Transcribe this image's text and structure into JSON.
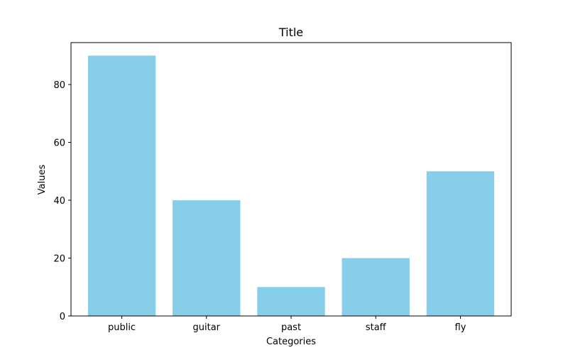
{
  "chart_data": {
    "type": "bar",
    "title": "Title",
    "xlabel": "Categories",
    "ylabel": "Values",
    "categories": [
      "public",
      "guitar",
      "past",
      "staff",
      "fly"
    ],
    "values": [
      90,
      40,
      10,
      20,
      50
    ],
    "ylim": [
      0,
      94.5
    ],
    "yticks": [
      0,
      20,
      40,
      60,
      80
    ],
    "bar_color": "#87ceeb",
    "grid": false,
    "legend": "none"
  }
}
